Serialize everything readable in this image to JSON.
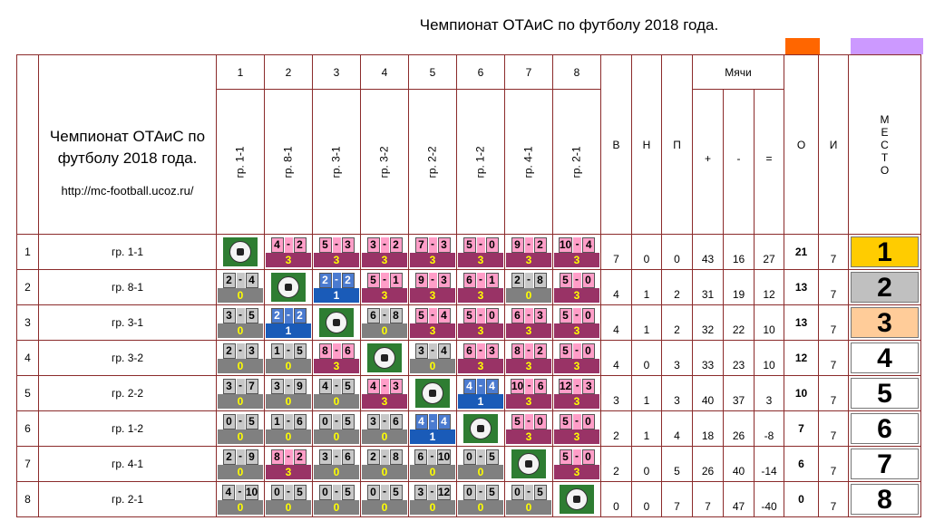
{
  "title": "Чемпионат ОТАиС по футболу 2018 года.",
  "accent_colors": {
    "orange": "#ff6600",
    "violet": "#cc99ff"
  },
  "header": {
    "numbers": [
      "1",
      "2",
      "3",
      "4",
      "5",
      "6",
      "7",
      "8"
    ],
    "groups": [
      "гр. 1-1",
      "гр. 8-1",
      "гр. 3-1",
      "гр. 3-2",
      "гр. 2-2",
      "гр. 1-2",
      "гр. 4-1",
      "гр. 2-1"
    ],
    "table_title": "Чемпионат ОТАиС по футболу 2018 года.",
    "url": "http://mc-football.ucoz.ru/",
    "v": "В",
    "n": "Н",
    "p": "П",
    "balls": "Мячи",
    "plus": "+",
    "minus": "-",
    "eq": "=",
    "o": "О",
    "i": "И",
    "mesto": "М Е С Т О"
  },
  "rows": [
    {
      "num": "1",
      "team": "гр. 1-1",
      "cells": [
        null,
        [
          "4",
          "2",
          "3",
          "w"
        ],
        [
          "5",
          "3",
          "3",
          "w"
        ],
        [
          "3",
          "2",
          "3",
          "w"
        ],
        [
          "7",
          "3",
          "3",
          "w"
        ],
        [
          "5",
          "0",
          "3",
          "w"
        ],
        [
          "9",
          "2",
          "3",
          "w"
        ],
        [
          "10",
          "4",
          "3",
          "w"
        ]
      ],
      "v": "7",
      "n": "0",
      "p": "0",
      "gf": "43",
      "ga": "16",
      "gd": "27",
      "pts": "21",
      "games": "7",
      "place": "1",
      "place_color": "#ffcc00"
    },
    {
      "num": "2",
      "team": "гр. 8-1",
      "cells": [
        [
          "2",
          "4",
          "0",
          "l"
        ],
        null,
        [
          "2",
          "2",
          "1",
          "d"
        ],
        [
          "5",
          "1",
          "3",
          "w"
        ],
        [
          "9",
          "3",
          "3",
          "w"
        ],
        [
          "6",
          "1",
          "3",
          "w"
        ],
        [
          "2",
          "8",
          "0",
          "l"
        ],
        [
          "5",
          "0",
          "3",
          "w"
        ]
      ],
      "v": "4",
      "n": "1",
      "p": "2",
      "gf": "31",
      "ga": "19",
      "gd": "12",
      "pts": "13",
      "games": "7",
      "place": "2",
      "place_color": "#c0c0c0"
    },
    {
      "num": "3",
      "team": "гр. 3-1",
      "cells": [
        [
          "3",
          "5",
          "0",
          "l"
        ],
        [
          "2",
          "2",
          "1",
          "d"
        ],
        null,
        [
          "6",
          "8",
          "0",
          "l"
        ],
        [
          "5",
          "4",
          "3",
          "w"
        ],
        [
          "5",
          "0",
          "3",
          "w"
        ],
        [
          "6",
          "3",
          "3",
          "w"
        ],
        [
          "5",
          "0",
          "3",
          "w"
        ]
      ],
      "v": "4",
      "n": "1",
      "p": "2",
      "gf": "32",
      "ga": "22",
      "gd": "10",
      "pts": "13",
      "games": "7",
      "place": "3",
      "place_color": "#ffcc99"
    },
    {
      "num": "4",
      "team": "гр. 3-2",
      "cells": [
        [
          "2",
          "3",
          "0",
          "l"
        ],
        [
          "1",
          "5",
          "0",
          "l"
        ],
        [
          "8",
          "6",
          "3",
          "w"
        ],
        null,
        [
          "3",
          "4",
          "0",
          "l"
        ],
        [
          "6",
          "3",
          "3",
          "w"
        ],
        [
          "8",
          "2",
          "3",
          "w"
        ],
        [
          "5",
          "0",
          "3",
          "w"
        ]
      ],
      "v": "4",
      "n": "0",
      "p": "3",
      "gf": "33",
      "ga": "23",
      "gd": "10",
      "pts": "12",
      "games": "7",
      "place": "4",
      "place_color": "#ffffff"
    },
    {
      "num": "5",
      "team": "гр. 2-2",
      "cells": [
        [
          "3",
          "7",
          "0",
          "l"
        ],
        [
          "3",
          "9",
          "0",
          "l"
        ],
        [
          "4",
          "5",
          "0",
          "l"
        ],
        [
          "4",
          "3",
          "3",
          "w"
        ],
        null,
        [
          "4",
          "4",
          "1",
          "d"
        ],
        [
          "10",
          "6",
          "3",
          "w"
        ],
        [
          "12",
          "3",
          "3",
          "w"
        ]
      ],
      "v": "3",
      "n": "1",
      "p": "3",
      "gf": "40",
      "ga": "37",
      "gd": "3",
      "pts": "10",
      "games": "7",
      "place": "5",
      "place_color": "#ffffff"
    },
    {
      "num": "6",
      "team": "гр. 1-2",
      "cells": [
        [
          "0",
          "5",
          "0",
          "l"
        ],
        [
          "1",
          "6",
          "0",
          "l"
        ],
        [
          "0",
          "5",
          "0",
          "l"
        ],
        [
          "3",
          "6",
          "0",
          "l"
        ],
        [
          "4",
          "4",
          "1",
          "d"
        ],
        null,
        [
          "5",
          "0",
          "3",
          "w"
        ],
        [
          "5",
          "0",
          "3",
          "w"
        ]
      ],
      "v": "2",
      "n": "1",
      "p": "4",
      "gf": "18",
      "ga": "26",
      "gd": "-8",
      "pts": "7",
      "games": "7",
      "place": "6",
      "place_color": "#ffffff"
    },
    {
      "num": "7",
      "team": "гр. 4-1",
      "cells": [
        [
          "2",
          "9",
          "0",
          "l"
        ],
        [
          "8",
          "2",
          "3",
          "w"
        ],
        [
          "3",
          "6",
          "0",
          "l"
        ],
        [
          "2",
          "8",
          "0",
          "l"
        ],
        [
          "6",
          "10",
          "0",
          "l"
        ],
        [
          "0",
          "5",
          "0",
          "l"
        ],
        null,
        [
          "5",
          "0",
          "3",
          "w"
        ]
      ],
      "v": "2",
      "n": "0",
      "p": "5",
      "gf": "26",
      "ga": "40",
      "gd": "-14",
      "pts": "6",
      "games": "7",
      "place": "7",
      "place_color": "#ffffff"
    },
    {
      "num": "8",
      "team": "гр. 2-1",
      "cells": [
        [
          "4",
          "10",
          "0",
          "l"
        ],
        [
          "0",
          "5",
          "0",
          "l"
        ],
        [
          "0",
          "5",
          "0",
          "l"
        ],
        [
          "0",
          "5",
          "0",
          "l"
        ],
        [
          "3",
          "12",
          "0",
          "l"
        ],
        [
          "0",
          "5",
          "0",
          "l"
        ],
        [
          "0",
          "5",
          "0",
          "l"
        ],
        null
      ],
      "v": "0",
      "n": "0",
      "p": "7",
      "gf": "7",
      "ga": "47",
      "gd": "-40",
      "pts": "0",
      "games": "7",
      "place": "8",
      "place_color": "#ffffff"
    }
  ]
}
